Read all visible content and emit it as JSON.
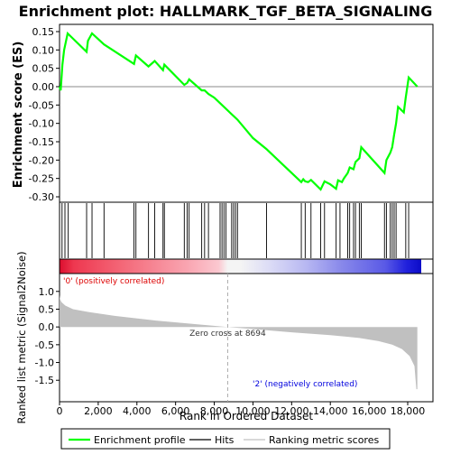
{
  "chart_data": [
    {
      "type": "line",
      "title": "Enrichment plot: HALLMARK_TGF_BETA_SIGNALING",
      "ylabel": "Enrichment score (ES)",
      "ylim": [
        -0.3,
        0.15
      ],
      "yticks": [
        "0.15",
        "0.10",
        "0.05",
        "0.00",
        "-0.05",
        "-0.10",
        "-0.15",
        "-0.20",
        "-0.25",
        "-0.30"
      ],
      "yticks_values": [
        0.15,
        0.1,
        0.05,
        0.0,
        -0.05,
        -0.1,
        -0.15,
        -0.2,
        -0.25,
        -0.3
      ],
      "xlim": [
        0,
        18700
      ],
      "grid": false,
      "series": [
        {
          "name": "Enrichment profile",
          "color": "#00ff00",
          "x": [
            0,
            60,
            150,
            240,
            420,
            1400,
            1470,
            1680,
            2300,
            3850,
            3950,
            4600,
            4920,
            5350,
            5420,
            6450,
            6600,
            6700,
            7350,
            7500,
            7700,
            8000,
            8400,
            8800,
            9200,
            9600,
            10000,
            10700,
            10800,
            11500,
            12500,
            12600,
            12700,
            12850,
            13000,
            13500,
            13700,
            14000,
            14300,
            14400,
            14600,
            14700,
            14900,
            15000,
            15200,
            15300,
            15500,
            15600,
            16800,
            16900,
            17100,
            17200,
            17300,
            17400,
            17500,
            17800,
            17900,
            18050,
            18500
          ],
          "y": [
            0.0,
            -0.01,
            0.06,
            0.1,
            0.145,
            0.095,
            0.125,
            0.145,
            0.115,
            0.062,
            0.085,
            0.055,
            0.07,
            0.045,
            0.06,
            0.005,
            0.01,
            0.02,
            -0.01,
            -0.01,
            -0.02,
            -0.03,
            -0.05,
            -0.07,
            -0.09,
            -0.115,
            -0.14,
            -0.17,
            -0.175,
            -0.21,
            -0.26,
            -0.252,
            -0.258,
            -0.26,
            -0.254,
            -0.28,
            -0.258,
            -0.266,
            -0.278,
            -0.255,
            -0.26,
            -0.25,
            -0.235,
            -0.22,
            -0.225,
            -0.205,
            -0.195,
            -0.165,
            -0.235,
            -0.2,
            -0.18,
            -0.165,
            -0.13,
            -0.1,
            -0.055,
            -0.07,
            -0.03,
            0.025,
            0.0
          ]
        }
      ],
      "zero_line": 0.0
    },
    {
      "type": "hits",
      "legend_label": "Hits",
      "hits": [
        130,
        280,
        450,
        1400,
        1680,
        2300,
        3850,
        3950,
        4600,
        4920,
        5350,
        5420,
        6450,
        6600,
        6700,
        7350,
        7500,
        7700,
        8300,
        8400,
        8500,
        8600,
        8900,
        9000,
        9100,
        9200,
        10700,
        12500,
        12700,
        13000,
        13500,
        13700,
        14300,
        14500,
        14900,
        15000,
        15200,
        15300,
        15500,
        15600,
        16800,
        16900,
        17100,
        17200,
        17300,
        17400,
        17900,
        18050
      ]
    },
    {
      "type": "heatmap",
      "colors_left_to_right": [
        "#e8001a",
        "#ffffff",
        "#0000ee"
      ],
      "colormap_stops": [
        {
          "at": 0.0,
          "color": "#dc0e2e"
        },
        {
          "at": 0.04,
          "color": "#ee3850"
        },
        {
          "at": 0.18,
          "color": "#f46a7a"
        },
        {
          "at": 0.35,
          "color": "#f9a4b0"
        },
        {
          "at": 0.44,
          "color": "#fbc8d0"
        },
        {
          "at": 0.465,
          "color": "#f4f4f4"
        },
        {
          "at": 0.5,
          "color": "#f4f4f4"
        },
        {
          "at": 0.58,
          "color": "#dcdcf6"
        },
        {
          "at": 0.68,
          "color": "#b8b8f2"
        },
        {
          "at": 0.78,
          "color": "#8888ea"
        },
        {
          "at": 0.9,
          "color": "#5a5ae6"
        },
        {
          "at": 0.96,
          "color": "#2020dc"
        },
        {
          "at": 1.0,
          "color": "#0c0cc8"
        }
      ]
    },
    {
      "type": "area",
      "ylabel": "Ranked list metric (Signal2Noise)",
      "xlabel": "Rank in Ordered Dataset",
      "ylim": [
        -1.85,
        1.35
      ],
      "yticks": [
        "1.0",
        "0.5",
        "0.0",
        "-0.5",
        "-1.0",
        "-1.5"
      ],
      "yticks_values": [
        1.0,
        0.5,
        0.0,
        -0.5,
        -1.0,
        -1.5
      ],
      "xticks": [
        "0",
        "2,000",
        "4,000",
        "6,000",
        "8,000",
        "10,000",
        "12,000",
        "14,000",
        "16,000",
        "18,000"
      ],
      "xticks_values": [
        0,
        2000,
        4000,
        6000,
        8000,
        10000,
        12000,
        14000,
        16000,
        18000
      ],
      "xlim": [
        0,
        18700
      ],
      "series": [
        {
          "name": "Ranking metric scores",
          "color": "#c0c0c0",
          "x": [
            0,
            30,
            100,
            300,
            700,
            1500,
            3000,
            5000,
            7000,
            8694,
            10000,
            12000,
            14000,
            15500,
            16500,
            17200,
            17700,
            18100,
            18350,
            18450,
            18500
          ],
          "y": [
            0.9,
            0.78,
            0.7,
            0.6,
            0.5,
            0.42,
            0.3,
            0.18,
            0.08,
            0.0,
            -0.06,
            -0.15,
            -0.23,
            -0.31,
            -0.4,
            -0.5,
            -0.62,
            -0.82,
            -1.1,
            -1.75,
            -1.75
          ]
        }
      ],
      "zero_cross_label": "Zero cross at 8694",
      "zero_cross_x": 8694,
      "positive_label": "'0' (positively correlated)",
      "negative_label": "'2' (negatively correlated)"
    }
  ],
  "legend": {
    "items": [
      {
        "label": "Enrichment profile",
        "color": "#00ff00"
      },
      {
        "label": "Hits",
        "color": "#000000"
      },
      {
        "label": "Ranking metric scores",
        "color": "#c0c0c0"
      }
    ]
  }
}
